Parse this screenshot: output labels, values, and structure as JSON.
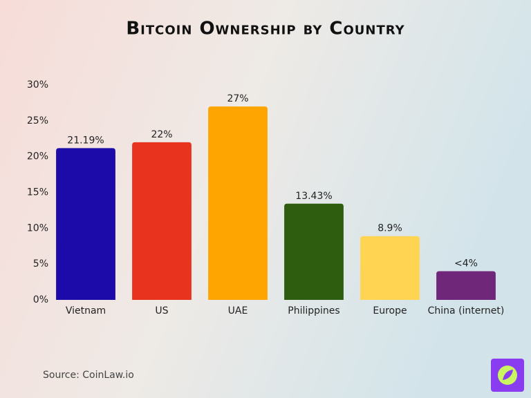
{
  "chart_data": {
    "type": "bar",
    "title": "Bitcoin Ownership by Country",
    "categories": [
      "Vietnam",
      "US",
      "UAE",
      "Philippines",
      "Europe",
      "China (internet)"
    ],
    "values": [
      21.19,
      22,
      27,
      13.43,
      8.9,
      4
    ],
    "value_labels": [
      "21.19%",
      "22%",
      "27%",
      "13.43%",
      "8.9%",
      "<4%"
    ],
    "colors": [
      "#1c0ba8",
      "#e8331f",
      "#ffa502",
      "#2f5d10",
      "#ffd452",
      "#6f2879"
    ],
    "ylim": [
      0,
      30
    ],
    "yticks": [
      {
        "value": 0,
        "label": "0%"
      },
      {
        "value": 5,
        "label": "5%"
      },
      {
        "value": 10,
        "label": "10%"
      },
      {
        "value": 15,
        "label": "15%"
      },
      {
        "value": 20,
        "label": "20%"
      },
      {
        "value": 25,
        "label": "25%"
      },
      {
        "value": 30,
        "label": "30%"
      }
    ],
    "grid": false,
    "source": "Source: CoinLaw.io"
  }
}
